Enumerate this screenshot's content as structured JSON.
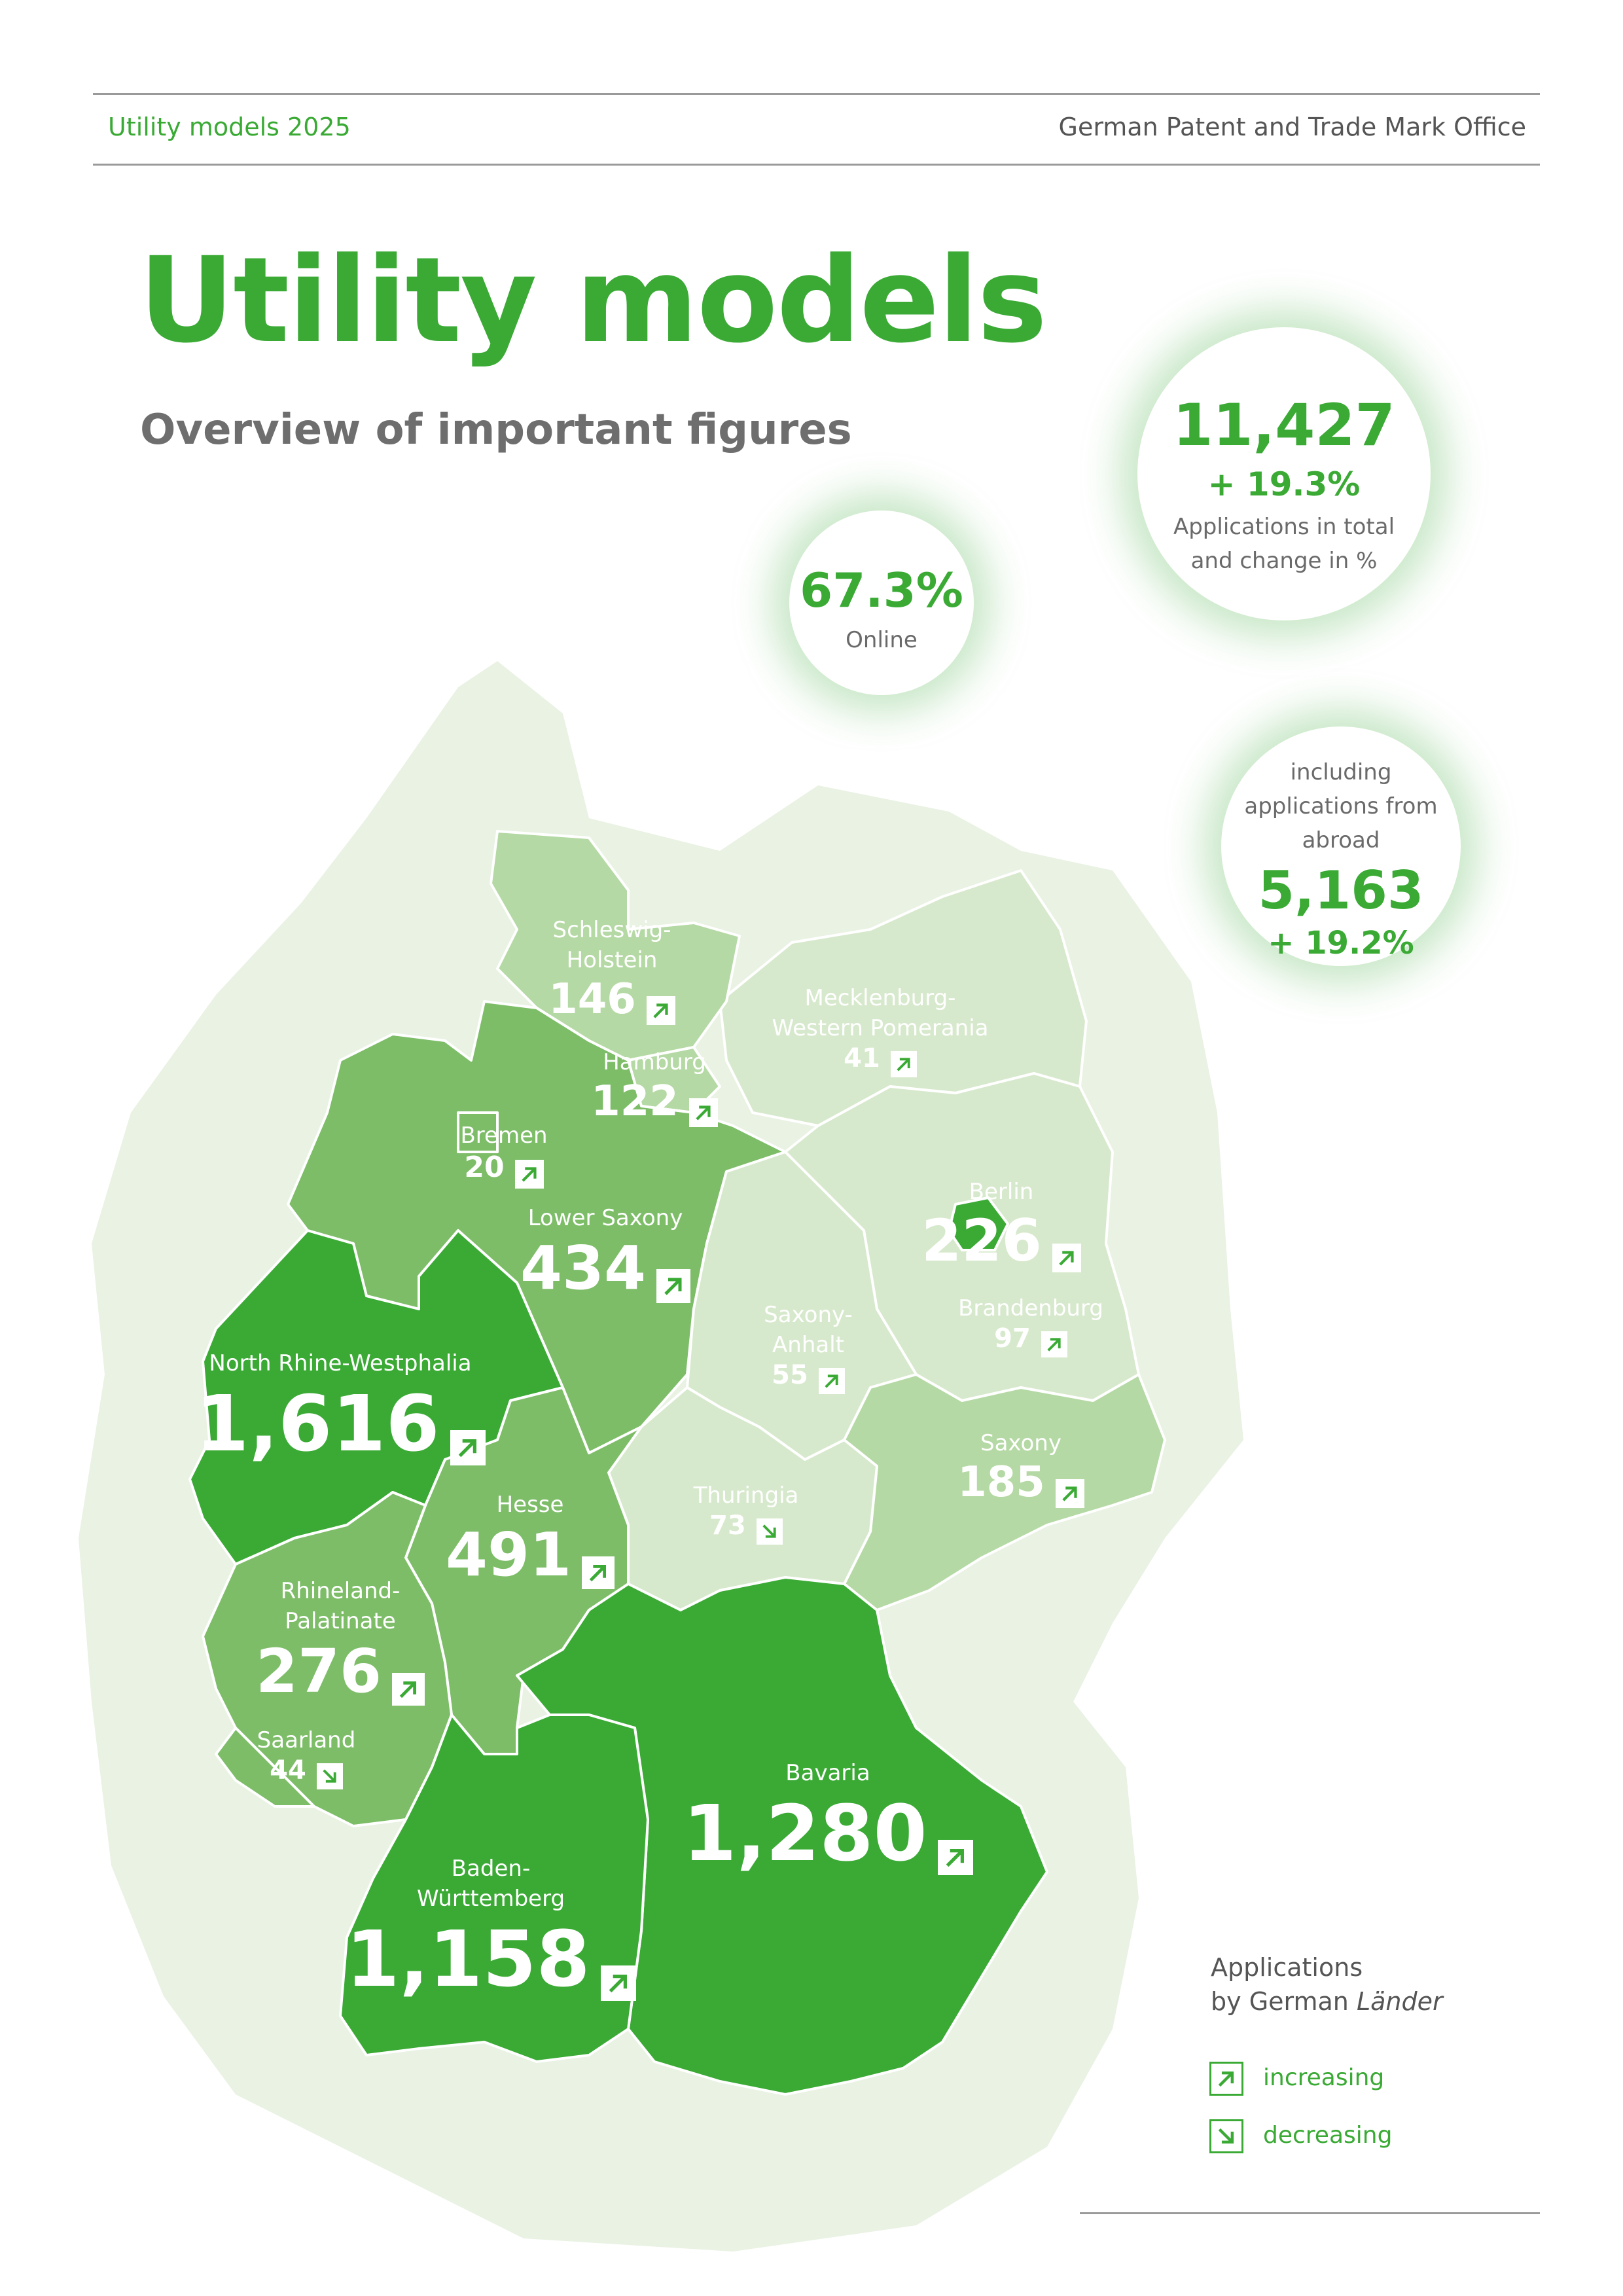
{
  "header": {
    "left": "Utility models 2025",
    "right": "German Patent and Trade Mark Office"
  },
  "title": "Utility models",
  "subtitle": "Overview of important figures",
  "total": {
    "value": "11,427",
    "change": "+ 19.3%",
    "line1": "Applications in total",
    "line2": "and change in %"
  },
  "online": {
    "value": "67.3%",
    "label": "Online"
  },
  "abroad": {
    "line1": "including",
    "line2": "applications from",
    "line3": "abroad",
    "value": "5,163",
    "change": "+ 19.2%"
  },
  "colors": {
    "accent": "#3aaa35",
    "dark": "#3aaa35",
    "medium": "#7dbd68",
    "light": "#b5d9a4",
    "pale": "#d7e9cc",
    "faint": "#e9f2e3"
  },
  "regions": [
    {
      "name": "Schleswig-",
      "name2": "Holstein",
      "value": "146",
      "trend": "increasing"
    },
    {
      "name": "Hamburg",
      "value": "122",
      "trend": "increasing"
    },
    {
      "name": "Mecklenburg-",
      "name2": "Western Pomerania",
      "value": "41",
      "trend": "increasing"
    },
    {
      "name": "Bremen",
      "value": "20",
      "trend": "increasing"
    },
    {
      "name": "Lower Saxony",
      "value": "434",
      "trend": "increasing"
    },
    {
      "name": "Berlin",
      "value": "226",
      "trend": "increasing"
    },
    {
      "name": "Brandenburg",
      "value": "97",
      "trend": "increasing"
    },
    {
      "name": "Saxony-",
      "name2": "Anhalt",
      "value": "55",
      "trend": "increasing"
    },
    {
      "name": "North Rhine-Westphalia",
      "value": "1,616",
      "trend": "increasing"
    },
    {
      "name": "Saxony",
      "value": "185",
      "trend": "increasing"
    },
    {
      "name": "Hesse",
      "value": "491",
      "trend": "increasing"
    },
    {
      "name": "Thuringia",
      "value": "73",
      "trend": "decreasing"
    },
    {
      "name": "Rhineland-",
      "name2": "Palatinate",
      "value": "276",
      "trend": "increasing"
    },
    {
      "name": "Saarland",
      "value": "44",
      "trend": "decreasing"
    },
    {
      "name": "Bavaria",
      "value": "1,280",
      "trend": "increasing"
    },
    {
      "name": "Baden-",
      "name2": "Württemberg",
      "value": "1,158",
      "trend": "increasing"
    }
  ],
  "legend": {
    "title1": "Applications",
    "title2": "by German ",
    "title2_italic": "Länder",
    "increasing": "increasing",
    "decreasing": "decreasing"
  }
}
